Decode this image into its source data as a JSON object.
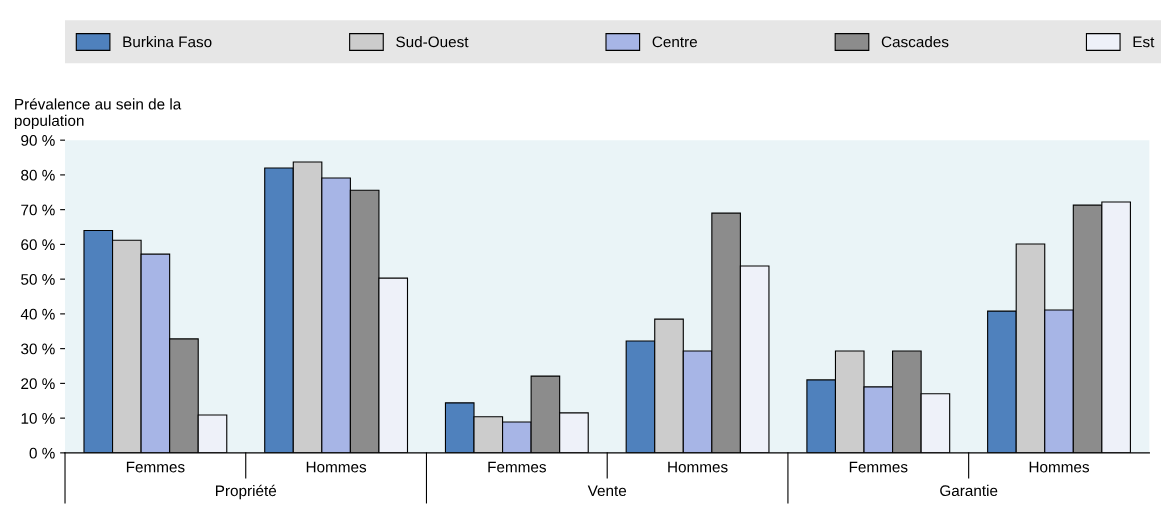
{
  "chart_data": {
    "type": "bar",
    "ylabel": "Prévalence au sein de la\npopulation",
    "categories": [
      "Femmes",
      "Hommes",
      "Femmes",
      "Hommes",
      "Femmes",
      "Hommes"
    ],
    "series": [
      {
        "name": "Burkina Faso",
        "color": "#4f81bd",
        "values": [
          64,
          82,
          14.4,
          32.2,
          21,
          40.8
        ]
      },
      {
        "name": "Sud-Ouest",
        "color": "#cccccc",
        "values": [
          61.2,
          83.7,
          10.4,
          38.5,
          29.3,
          60.1
        ]
      },
      {
        "name": "Centre",
        "color": "#a7b5e6",
        "values": [
          57.2,
          79.1,
          8.9,
          29.3,
          19,
          41.1
        ]
      },
      {
        "name": "Cascades",
        "color": "#8c8c8c",
        "values": [
          32.8,
          75.6,
          22.1,
          69,
          29.3,
          71.3
        ]
      },
      {
        "name": "Est",
        "color": "#eef1f9",
        "values": [
          10.9,
          50.3,
          11.5,
          53.8,
          17,
          72.2
        ]
      }
    ],
    "annotations": [
      "Propriété",
      "Vente",
      "Garantie"
    ],
    "ylim": [
      0,
      90
    ],
    "yticks": [
      {
        "value": 0,
        "label": "0 %"
      },
      {
        "value": 10,
        "label": "10 %"
      },
      {
        "value": 20,
        "label": "20 %"
      },
      {
        "value": 30,
        "label": "30 %"
      },
      {
        "value": 40,
        "label": "40 %"
      },
      {
        "value": 50,
        "label": "50 %"
      },
      {
        "value": 60,
        "label": "60 %"
      },
      {
        "value": 70,
        "label": "70 %"
      },
      {
        "value": 80,
        "label": "80 %"
      },
      {
        "value": 90,
        "label": "90 %"
      }
    ],
    "grid": false,
    "legend": "top"
  }
}
